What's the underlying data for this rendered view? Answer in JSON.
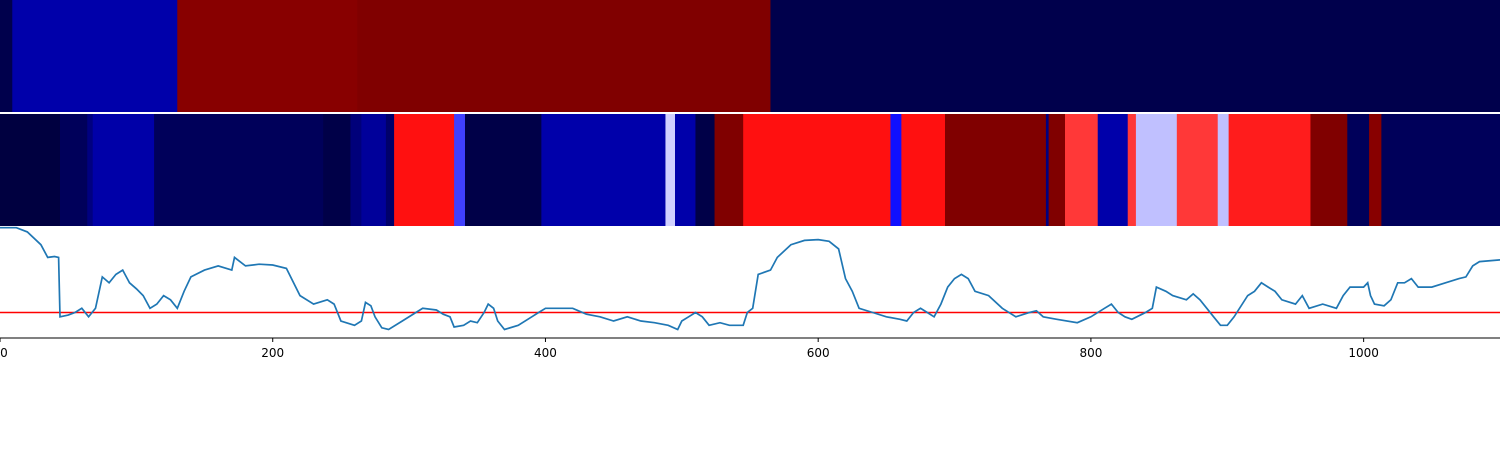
{
  "chart_data": [
    {
      "type": "heatmap",
      "name": "segment-strip-top",
      "xlim": [
        0,
        1100
      ],
      "segments": [
        {
          "start": 0,
          "end": 9,
          "color": "#00004c"
        },
        {
          "start": 9,
          "end": 130,
          "color": "#0000aa"
        },
        {
          "start": 130,
          "end": 262,
          "color": "#880000"
        },
        {
          "start": 262,
          "end": 565,
          "color": "#800000"
        },
        {
          "start": 565,
          "end": 1100,
          "color": "#00004c"
        }
      ]
    },
    {
      "type": "heatmap",
      "name": "segment-strip-middle",
      "xlim": [
        0,
        1100
      ],
      "segments": [
        {
          "start": 0,
          "end": 44,
          "color": "#000040"
        },
        {
          "start": 44,
          "end": 64,
          "color": "#00005a"
        },
        {
          "start": 64,
          "end": 68,
          "color": "#000080"
        },
        {
          "start": 68,
          "end": 113,
          "color": "#0000a8"
        },
        {
          "start": 113,
          "end": 237,
          "color": "#00005a"
        },
        {
          "start": 237,
          "end": 257,
          "color": "#000048"
        },
        {
          "start": 257,
          "end": 265,
          "color": "#00007a"
        },
        {
          "start": 265,
          "end": 283,
          "color": "#00009a"
        },
        {
          "start": 283,
          "end": 289,
          "color": "#00006a"
        },
        {
          "start": 289,
          "end": 333,
          "color": "#ff1010"
        },
        {
          "start": 333,
          "end": 341,
          "color": "#4040ff"
        },
        {
          "start": 341,
          "end": 397,
          "color": "#000048"
        },
        {
          "start": 397,
          "end": 488,
          "color": "#0000aa"
        },
        {
          "start": 488,
          "end": 495,
          "color": "#d0d0ff"
        },
        {
          "start": 495,
          "end": 510,
          "color": "#0000aa"
        },
        {
          "start": 510,
          "end": 524,
          "color": "#000048"
        },
        {
          "start": 524,
          "end": 545,
          "color": "#800000"
        },
        {
          "start": 545,
          "end": 653,
          "color": "#ff1010"
        },
        {
          "start": 653,
          "end": 661,
          "color": "#1010ff"
        },
        {
          "start": 661,
          "end": 693,
          "color": "#ff1010"
        },
        {
          "start": 693,
          "end": 767,
          "color": "#800000"
        },
        {
          "start": 767,
          "end": 769,
          "color": "#000080"
        },
        {
          "start": 769,
          "end": 781,
          "color": "#800000"
        },
        {
          "start": 781,
          "end": 805,
          "color": "#ff3838"
        },
        {
          "start": 805,
          "end": 827,
          "color": "#0000aa"
        },
        {
          "start": 827,
          "end": 833,
          "color": "#ff3838"
        },
        {
          "start": 833,
          "end": 863,
          "color": "#c0c0ff"
        },
        {
          "start": 863,
          "end": 893,
          "color": "#ff3838"
        },
        {
          "start": 893,
          "end": 901,
          "color": "#c0c0ff"
        },
        {
          "start": 901,
          "end": 961,
          "color": "#ff1c1c"
        },
        {
          "start": 961,
          "end": 988,
          "color": "#800000"
        },
        {
          "start": 988,
          "end": 1004,
          "color": "#00005a"
        },
        {
          "start": 1004,
          "end": 1013,
          "color": "#880000"
        },
        {
          "start": 1013,
          "end": 1100,
          "color": "#00005a"
        }
      ]
    },
    {
      "type": "line",
      "name": "signal-line-plot",
      "xlim": [
        0,
        1100
      ],
      "ylim": [
        -0.3,
        1.02
      ],
      "line_color": "#1f77b4",
      "threshold": {
        "y": 0,
        "color": "#ff0000"
      },
      "x_ticks": [
        0,
        200,
        400,
        600,
        800,
        1000
      ],
      "x_tick_labels": [
        "0",
        "200",
        "400",
        "600",
        "800",
        "1000"
      ],
      "points": [
        [
          0,
          1.0
        ],
        [
          12,
          1.0
        ],
        [
          20,
          0.95
        ],
        [
          30,
          0.8
        ],
        [
          35,
          0.65
        ],
        [
          40,
          0.66
        ],
        [
          43,
          0.65
        ],
        [
          44,
          -0.05
        ],
        [
          50,
          -0.03
        ],
        [
          55,
          0.0
        ],
        [
          60,
          0.05
        ],
        [
          65,
          -0.05
        ],
        [
          70,
          0.05
        ],
        [
          75,
          0.42
        ],
        [
          80,
          0.35
        ],
        [
          85,
          0.45
        ],
        [
          90,
          0.5
        ],
        [
          95,
          0.35
        ],
        [
          100,
          0.28
        ],
        [
          105,
          0.2
        ],
        [
          110,
          0.05
        ],
        [
          115,
          0.1
        ],
        [
          120,
          0.2
        ],
        [
          125,
          0.15
        ],
        [
          130,
          0.05
        ],
        [
          135,
          0.25
        ],
        [
          140,
          0.42
        ],
        [
          150,
          0.5
        ],
        [
          160,
          0.55
        ],
        [
          170,
          0.5
        ],
        [
          172,
          0.65
        ],
        [
          180,
          0.55
        ],
        [
          190,
          0.57
        ],
        [
          200,
          0.56
        ],
        [
          210,
          0.52
        ],
        [
          220,
          0.2
        ],
        [
          230,
          0.1
        ],
        [
          240,
          0.15
        ],
        [
          245,
          0.1
        ],
        [
          250,
          -0.1
        ],
        [
          260,
          -0.15
        ],
        [
          265,
          -0.1
        ],
        [
          268,
          0.12
        ],
        [
          272,
          0.08
        ],
        [
          275,
          -0.05
        ],
        [
          280,
          -0.18
        ],
        [
          285,
          -0.2
        ],
        [
          295,
          -0.1
        ],
        [
          305,
          0.0
        ],
        [
          310,
          0.05
        ],
        [
          320,
          0.03
        ],
        [
          325,
          -0.02
        ],
        [
          330,
          -0.05
        ],
        [
          333,
          -0.17
        ],
        [
          340,
          -0.15
        ],
        [
          345,
          -0.1
        ],
        [
          350,
          -0.12
        ],
        [
          355,
          0.0
        ],
        [
          358,
          0.1
        ],
        [
          362,
          0.05
        ],
        [
          365,
          -0.1
        ],
        [
          370,
          -0.2
        ],
        [
          380,
          -0.15
        ],
        [
          390,
          -0.05
        ],
        [
          395,
          0.0
        ],
        [
          400,
          0.05
        ],
        [
          420,
          0.05
        ],
        [
          430,
          -0.02
        ],
        [
          440,
          -0.05
        ],
        [
          450,
          -0.1
        ],
        [
          460,
          -0.05
        ],
        [
          470,
          -0.1
        ],
        [
          480,
          -0.12
        ],
        [
          490,
          -0.15
        ],
        [
          497,
          -0.2
        ],
        [
          500,
          -0.1
        ],
        [
          505,
          -0.05
        ],
        [
          510,
          0.0
        ],
        [
          515,
          -0.05
        ],
        [
          520,
          -0.15
        ],
        [
          528,
          -0.12
        ],
        [
          535,
          -0.15
        ],
        [
          545,
          -0.15
        ],
        [
          548,
          0.0
        ],
        [
          552,
          0.05
        ],
        [
          556,
          0.45
        ],
        [
          565,
          0.5
        ],
        [
          570,
          0.65
        ],
        [
          580,
          0.8
        ],
        [
          590,
          0.85
        ],
        [
          600,
          0.86
        ],
        [
          608,
          0.84
        ],
        [
          615,
          0.75
        ],
        [
          620,
          0.4
        ],
        [
          625,
          0.25
        ],
        [
          630,
          0.05
        ],
        [
          640,
          0.0
        ],
        [
          650,
          -0.05
        ],
        [
          660,
          -0.08
        ],
        [
          665,
          -0.1
        ],
        [
          670,
          0.0
        ],
        [
          675,
          0.05
        ],
        [
          680,
          0.0
        ],
        [
          685,
          -0.05
        ],
        [
          690,
          0.1
        ],
        [
          695,
          0.3
        ],
        [
          700,
          0.4
        ],
        [
          705,
          0.45
        ],
        [
          710,
          0.4
        ],
        [
          715,
          0.25
        ],
        [
          725,
          0.2
        ],
        [
          735,
          0.05
        ],
        [
          745,
          -0.05
        ],
        [
          755,
          0.0
        ],
        [
          760,
          0.02
        ],
        [
          765,
          -0.05
        ],
        [
          775,
          -0.08
        ],
        [
          790,
          -0.12
        ],
        [
          800,
          -0.05
        ],
        [
          810,
          0.05
        ],
        [
          815,
          0.1
        ],
        [
          820,
          0.0
        ],
        [
          825,
          -0.05
        ],
        [
          830,
          -0.08
        ],
        [
          840,
          0.0
        ],
        [
          845,
          0.05
        ],
        [
          848,
          0.3
        ],
        [
          855,
          0.25
        ],
        [
          860,
          0.2
        ],
        [
          870,
          0.15
        ],
        [
          875,
          0.22
        ],
        [
          880,
          0.15
        ],
        [
          885,
          0.05
        ],
        [
          890,
          -0.05
        ],
        [
          895,
          -0.15
        ],
        [
          900,
          -0.15
        ],
        [
          905,
          -0.05
        ],
        [
          915,
          0.2
        ],
        [
          920,
          0.25
        ],
        [
          925,
          0.35
        ],
        [
          930,
          0.3
        ],
        [
          935,
          0.25
        ],
        [
          940,
          0.15
        ],
        [
          950,
          0.1
        ],
        [
          955,
          0.2
        ],
        [
          960,
          0.05
        ],
        [
          970,
          0.1
        ],
        [
          980,
          0.05
        ],
        [
          985,
          0.2
        ],
        [
          990,
          0.3
        ],
        [
          1000,
          0.3
        ],
        [
          1003,
          0.35
        ],
        [
          1005,
          0.2
        ],
        [
          1008,
          0.1
        ],
        [
          1015,
          0.08
        ],
        [
          1020,
          0.15
        ],
        [
          1025,
          0.35
        ],
        [
          1030,
          0.35
        ],
        [
          1035,
          0.4
        ],
        [
          1040,
          0.3
        ],
        [
          1050,
          0.3
        ],
        [
          1060,
          0.35
        ],
        [
          1070,
          0.4
        ],
        [
          1075,
          0.42
        ],
        [
          1080,
          0.55
        ],
        [
          1085,
          0.6
        ],
        [
          1100,
          0.62
        ]
      ]
    }
  ]
}
